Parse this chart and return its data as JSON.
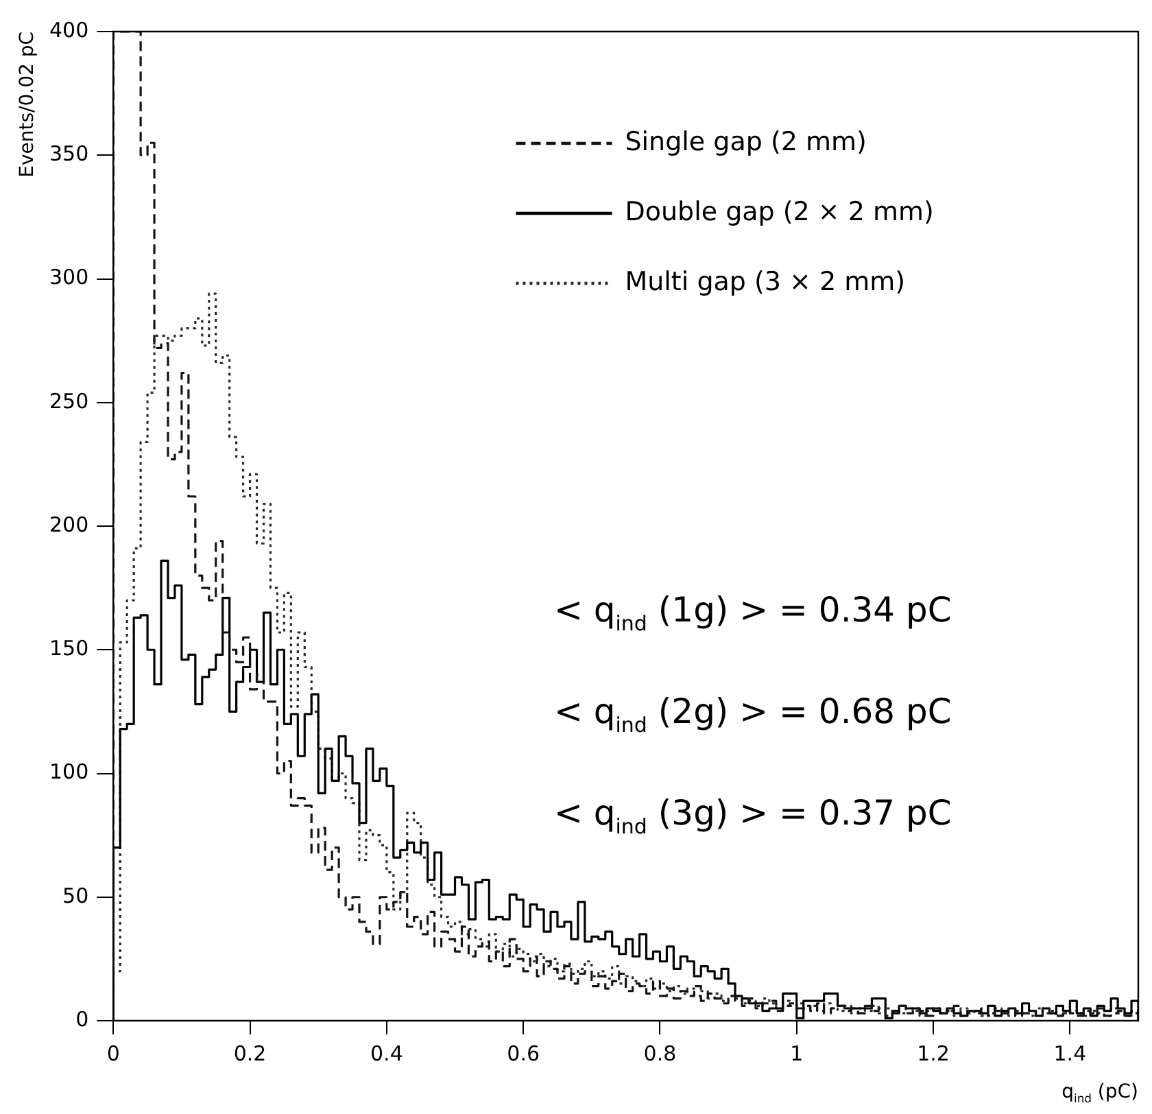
{
  "chart_data": {
    "type": "histogram",
    "xlabel": "q$_{ind}$ (pC)",
    "ylabel": "Events/0.02 pC",
    "bins": [
      0,
      0.01,
      0.02,
      0.03,
      0.04,
      0.05,
      0.06,
      0.07,
      0.08,
      0.09,
      0.1,
      0.11,
      0.12,
      0.13,
      0.14,
      0.15,
      0.16,
      0.17,
      0.18,
      0.19,
      0.2,
      0.21,
      0.22,
      0.23,
      0.24,
      0.25,
      0.26,
      0.27,
      0.28,
      0.29,
      0.3,
      0.31,
      0.32,
      0.33,
      0.34,
      0.35,
      0.36,
      0.37,
      0.38,
      0.39,
      0.4,
      0.41,
      0.42,
      0.43,
      0.44,
      0.45,
      0.46,
      0.47,
      0.48,
      0.49,
      0.5,
      0.51,
      0.52,
      0.53,
      0.54,
      0.55,
      0.56,
      0.57,
      0.58,
      0.59,
      0.6,
      0.61,
      0.62,
      0.63,
      0.64,
      0.65,
      0.66,
      0.67,
      0.68,
      0.69,
      0.7,
      0.71,
      0.72,
      0.73,
      0.74,
      0.75,
      0.76,
      0.77,
      0.78,
      0.79,
      0.8,
      0.81,
      0.82,
      0.83,
      0.84,
      0.85,
      0.86,
      0.87,
      0.88,
      0.89,
      0.9,
      0.91,
      0.92,
      0.93,
      0.94,
      0.95,
      0.96,
      0.97,
      0.98,
      0.99,
      1,
      1.01,
      1.02,
      1.03,
      1.04,
      1.05,
      1.06,
      1.07,
      1.08,
      1.09,
      1.1,
      1.11,
      1.12,
      1.13,
      1.14,
      1.15,
      1.16,
      1.17,
      1.18,
      1.19,
      1.2,
      1.21,
      1.22,
      1.23,
      1.24,
      1.25,
      1.26,
      1.27,
      1.28,
      1.29,
      1.3,
      1.31,
      1.32,
      1.33,
      1.34,
      1.35,
      1.36,
      1.37,
      1.38,
      1.39,
      1.4,
      1.41,
      1.42,
      1.43,
      1.44,
      1.45,
      1.46,
      1.47,
      1.48,
      1.49,
      1.5
    ],
    "series": [
      {
        "name": "Single gap (2 mm)",
        "color": "#141414",
        "line_style": "dashed",
        "values": [
          400,
          400,
          400,
          400,
          350,
          355,
          272,
          274,
          227,
          230,
          262,
          212,
          180,
          175,
          170,
          194,
          157,
          150,
          145,
          155,
          134,
          140,
          129,
          129,
          100,
          105,
          87,
          90,
          87,
          68,
          78,
          61,
          70,
          50,
          45,
          50,
          40,
          36,
          31,
          50,
          45,
          48,
          52,
          38,
          42,
          35,
          44,
          30,
          36,
          33,
          28,
          38,
          26,
          30,
          32,
          24,
          28,
          22,
          33,
          25,
          20,
          26,
          18,
          24,
          21,
          17,
          22,
          15,
          19,
          20,
          14,
          18,
          13,
          16,
          19,
          12,
          15,
          14,
          11,
          16,
          10,
          13,
          9,
          12,
          10,
          14,
          8,
          11,
          9,
          7,
          10,
          8,
          6,
          9,
          5,
          7,
          8,
          4,
          6,
          7,
          5,
          6,
          4,
          7,
          3,
          5,
          6,
          4,
          5,
          3,
          6,
          4,
          5,
          2,
          4,
          6,
          3,
          5,
          4,
          2,
          5,
          3,
          4,
          6,
          2,
          4,
          3,
          5,
          2,
          4,
          3,
          5,
          2,
          3,
          4,
          2,
          5,
          3,
          2,
          4,
          3,
          2,
          4,
          3,
          5,
          2,
          3,
          4,
          2,
          3
        ]
      },
      {
        "name": "Double gap (2 × 2 mm)",
        "color": "#000000",
        "line_style": "solid",
        "values": [
          70,
          118,
          120,
          163,
          164,
          150,
          136,
          186,
          171,
          176,
          146,
          148,
          128,
          139,
          142,
          148,
          171,
          125,
          137,
          143,
          150,
          137,
          165,
          136,
          150,
          120,
          124,
          107,
          124,
          132,
          92,
          110,
          97,
          115,
          107,
          96,
          80,
          110,
          97,
          102,
          95,
          66,
          69,
          72,
          68,
          72,
          57,
          68,
          51,
          51,
          58,
          55,
          41,
          56,
          57,
          41,
          42,
          41,
          51,
          49,
          38,
          47,
          45,
          36,
          44,
          38,
          40,
          33,
          48,
          32,
          34,
          33,
          36,
          30,
          27,
          33,
          26,
          35,
          25,
          28,
          24,
          30,
          21,
          26,
          24,
          18,
          22,
          20,
          17,
          21,
          15,
          10,
          9,
          7,
          7,
          4,
          5,
          5,
          11,
          11,
          1,
          8,
          8,
          8,
          11,
          11,
          6,
          5,
          5,
          5,
          5,
          9,
          9,
          1,
          3,
          6,
          5,
          5,
          3,
          5,
          4,
          3,
          5,
          3,
          2,
          4,
          4,
          3,
          6,
          2,
          4,
          5,
          3,
          7,
          4,
          2,
          5,
          3,
          6,
          4,
          8,
          3,
          5,
          2,
          6,
          4,
          9,
          5,
          3,
          8
        ]
      },
      {
        "name": "Multi gap (3 × 2 mm)",
        "color": "#2a2a2a",
        "line_style": "dotted",
        "values": [
          20,
          153,
          170,
          191,
          234,
          254,
          277,
          277,
          275,
          277,
          280,
          280,
          284,
          273,
          294,
          266,
          269,
          236,
          228,
          212,
          221,
          193,
          209,
          175,
          157,
          173,
          127,
          157,
          143,
          125,
          110,
          106,
          97,
          100,
          90,
          88,
          65,
          77,
          75,
          71,
          60,
          45,
          52,
          84,
          80,
          66,
          55,
          50,
          42,
          38,
          40,
          35,
          37,
          33,
          30,
          35,
          28,
          31,
          26,
          29,
          27,
          24,
          27,
          22,
          25,
          20,
          23,
          19,
          21,
          24,
          18,
          20,
          17,
          22,
          15,
          18,
          16,
          14,
          17,
          13,
          15,
          12,
          14,
          11,
          13,
          10,
          12,
          9,
          11,
          8,
          10,
          9,
          7,
          8,
          6,
          9,
          7,
          5,
          8,
          6,
          7,
          5,
          6,
          4,
          7,
          5,
          4,
          6,
          3,
          5,
          4,
          6,
          3,
          5,
          4,
          3,
          5,
          4,
          2,
          4,
          5,
          3,
          4,
          2,
          5,
          3,
          4,
          2,
          3,
          5,
          3,
          2,
          4,
          3,
          2,
          5,
          3,
          4,
          2,
          3,
          4,
          3,
          2,
          4,
          3,
          2,
          5,
          3,
          2,
          4
        ]
      }
    ],
    "annotations": [
      "< q$_{ind}$ (1g) > = 0.34 pC",
      "< q$_{ind}$ (2g) > = 0.68 pC",
      "< q$_{ind}$ (3g) > = 0.37 pC"
    ],
    "xlim": [
      0,
      1.5
    ],
    "xticks": [
      0,
      0.2,
      0.4,
      0.6,
      0.8,
      1,
      1.2,
      1.4
    ],
    "ylim": [
      0,
      400
    ],
    "yticks": [
      0,
      50,
      100,
      150,
      200,
      250,
      300,
      350,
      400
    ],
    "legend": "top right",
    "grid": false
  }
}
